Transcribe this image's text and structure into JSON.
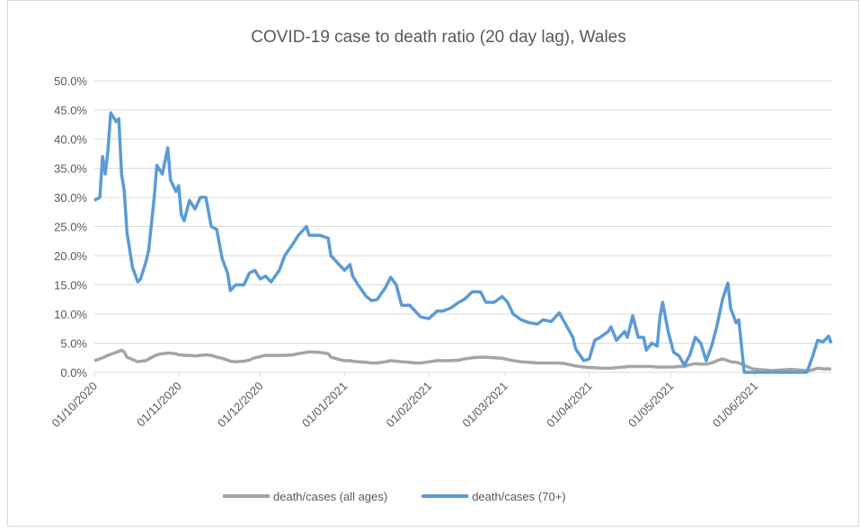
{
  "chart_data": {
    "type": "line",
    "title": "COVID-19 case to death ratio (20 day lag), Wales",
    "x": [
      "01/10/2020",
      "03/10/2020",
      "04/10/2020",
      "05/10/2020",
      "06/10/2020",
      "07/10/2020",
      "09/10/2020",
      "10/10/2020",
      "11/10/2020",
      "12/10/2020",
      "13/10/2020",
      "15/10/2020",
      "17/10/2020",
      "18/10/2020",
      "20/10/2020",
      "21/10/2020",
      "23/10/2020",
      "24/10/2020",
      "26/10/2020",
      "28/10/2020",
      "29/10/2020",
      "31/10/2020",
      "01/11/2020",
      "02/11/2020",
      "03/11/2020",
      "05/11/2020",
      "07/11/2020",
      "09/11/2020",
      "11/11/2020",
      "13/11/2020",
      "15/11/2020",
      "17/11/2020",
      "19/11/2020",
      "20/11/2020",
      "22/11/2020",
      "25/11/2020",
      "27/11/2020",
      "29/11/2020",
      "01/12/2020",
      "03/12/2020",
      "05/12/2020",
      "08/12/2020",
      "10/12/2020",
      "13/12/2020",
      "15/12/2020",
      "18/12/2020",
      "19/12/2020",
      "23/12/2020",
      "26/12/2020",
      "27/12/2020",
      "30/12/2020",
      "01/01/2021",
      "03/01/2021",
      "04/01/2021",
      "06/01/2021",
      "09/01/2021",
      "11/01/2021",
      "13/01/2021",
      "16/01/2021",
      "18/01/2021",
      "20/01/2021",
      "22/01/2021",
      "25/01/2021",
      "27/01/2021",
      "29/01/2021",
      "01/02/2021",
      "04/02/2021",
      "06/02/2021",
      "09/02/2021",
      "12/02/2021",
      "14/02/2021",
      "17/02/2021",
      "20/02/2021",
      "22/02/2021",
      "25/02/2021",
      "28/02/2021",
      "02/03/2021",
      "04/03/2021",
      "07/03/2021",
      "10/03/2021",
      "13/03/2021",
      "15/03/2021",
      "18/03/2021",
      "21/03/2021",
      "23/03/2021",
      "26/03/2021",
      "27/03/2021",
      "30/03/2021",
      "01/04/2021",
      "03/04/2021",
      "05/04/2021",
      "08/04/2021",
      "09/04/2021",
      "11/04/2021",
      "14/04/2021",
      "15/04/2021",
      "17/04/2021",
      "19/04/2021",
      "21/04/2021",
      "22/04/2021",
      "24/04/2021",
      "26/04/2021",
      "27/04/2021",
      "28/04/2021",
      "30/04/2021",
      "02/05/2021",
      "04/05/2021",
      "06/05/2021",
      "08/05/2021",
      "10/05/2021",
      "12/05/2021",
      "14/05/2021",
      "16/05/2021",
      "18/05/2021",
      "20/05/2021",
      "22/05/2021",
      "23/05/2021",
      "25/05/2021",
      "26/05/2021",
      "28/05/2021",
      "31/05/2021",
      "07/06/2021",
      "14/06/2021",
      "20/06/2021",
      "22/06/2021",
      "24/06/2021",
      "26/06/2021",
      "28/06/2021",
      "29/06/2021"
    ],
    "series": [
      {
        "name": "death/cases (all ages)",
        "color": "#a5a5a5",
        "values": [
          2.0,
          2.3,
          2.5,
          2.7,
          2.9,
          3.1,
          3.4,
          3.6,
          3.8,
          3.5,
          2.6,
          2.2,
          1.8,
          1.9,
          2.0,
          2.3,
          2.8,
          3.0,
          3.2,
          3.3,
          3.3,
          3.2,
          3.0,
          3.0,
          2.9,
          2.9,
          2.8,
          2.9,
          3.0,
          2.9,
          2.6,
          2.4,
          2.1,
          1.9,
          1.8,
          1.9,
          2.1,
          2.5,
          2.7,
          2.9,
          2.9,
          2.9,
          2.9,
          3.0,
          3.2,
          3.4,
          3.5,
          3.4,
          3.2,
          2.6,
          2.2,
          2.0,
          2.0,
          1.9,
          1.8,
          1.7,
          1.6,
          1.6,
          1.8,
          2.0,
          1.9,
          1.8,
          1.7,
          1.6,
          1.6,
          1.8,
          2.0,
          2.0,
          2.0,
          2.1,
          2.3,
          2.5,
          2.6,
          2.6,
          2.5,
          2.4,
          2.2,
          2.0,
          1.8,
          1.7,
          1.6,
          1.6,
          1.6,
          1.6,
          1.5,
          1.2,
          1.1,
          0.9,
          0.8,
          0.8,
          0.7,
          0.7,
          0.7,
          0.8,
          0.9,
          1.0,
          1.0,
          1.0,
          1.0,
          1.0,
          1.0,
          0.9,
          0.9,
          0.9,
          0.9,
          0.9,
          1.0,
          1.0,
          1.3,
          1.5,
          1.4,
          1.4,
          1.6,
          2.0,
          2.3,
          2.0,
          1.8,
          1.7,
          1.6,
          1.2,
          0.6,
          0.3,
          0.5,
          0.3,
          0.4,
          0.7,
          0.6,
          0.6,
          0.6
        ]
      },
      {
        "name": "death/cases (70+)",
        "color": "#5b9bd5",
        "values": [
          29.5,
          30,
          37,
          34,
          38,
          44.5,
          43,
          43.5,
          34,
          31,
          24,
          18,
          15.5,
          16,
          19,
          21,
          30,
          35.5,
          34,
          38.5,
          33,
          31,
          32,
          27,
          26,
          29.5,
          28,
          30,
          30,
          25,
          24.5,
          19.5,
          17,
          14,
          15,
          15,
          17,
          17.5,
          16,
          16.5,
          15.5,
          17.5,
          20,
          22,
          23.5,
          25,
          23.5,
          23.5,
          23,
          20,
          18.5,
          17.5,
          18.5,
          16.5,
          15,
          13,
          12.3,
          12.5,
          14.5,
          16.3,
          15,
          11.5,
          11.5,
          10.5,
          9.5,
          9.2,
          10.5,
          10.5,
          11,
          12,
          12.5,
          13.8,
          13.8,
          12,
          12,
          13,
          12,
          10,
          9,
          8.5,
          8.3,
          9,
          8.7,
          10.2,
          8.5,
          6,
          4,
          2,
          2.3,
          5.5,
          6,
          7,
          7.8,
          5.5,
          7,
          6,
          9.7,
          6,
          6,
          3.8,
          5,
          4.5,
          9.5,
          12,
          7,
          3.5,
          2.8,
          1.2,
          3,
          6,
          5,
          2,
          4.5,
          8,
          12.5,
          15.3,
          11,
          8.5,
          9,
          0,
          0,
          0,
          0,
          0,
          2.5,
          5.5,
          5.2,
          6.2,
          5
        ]
      }
    ],
    "xlim": [
      "01/10/2020",
      "29/06/2021"
    ],
    "xticks": [
      "01/10/2020",
      "01/11/2020",
      "01/12/2020",
      "01/01/2021",
      "01/02/2021",
      "01/03/2021",
      "01/04/2021",
      "01/05/2021",
      "01/06/2021"
    ],
    "ylim": [
      0,
      50
    ],
    "yticks": [
      {
        "value": 0,
        "label": "0.0%"
      },
      {
        "value": 5,
        "label": "5.0%"
      },
      {
        "value": 10,
        "label": "10.0%"
      },
      {
        "value": 15,
        "label": "15.0%"
      },
      {
        "value": 20,
        "label": "20.0%"
      },
      {
        "value": 25,
        "label": "25.0%"
      },
      {
        "value": 30,
        "label": "30.0%"
      },
      {
        "value": 35,
        "label": "35.0%"
      },
      {
        "value": 40,
        "label": "40.0%"
      },
      {
        "value": 45,
        "label": "45.0%"
      },
      {
        "value": 50,
        "label": "50.0%"
      }
    ],
    "grid": true,
    "legend": "bottom"
  }
}
